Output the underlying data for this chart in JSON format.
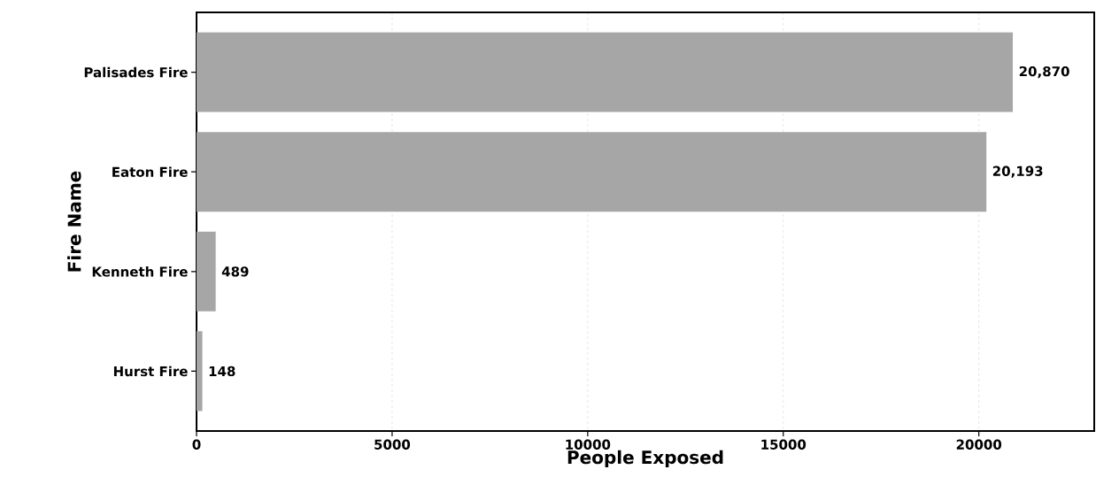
{
  "chart_data": {
    "type": "bar",
    "orientation": "horizontal",
    "xlabel": "People Exposed",
    "ylabel": "Fire Name",
    "categories": [
      "Palisades Fire",
      "Eaton Fire",
      "Kenneth Fire",
      "Hurst Fire"
    ],
    "values": [
      20870,
      20193,
      489,
      148
    ],
    "value_labels": [
      "20,870",
      "20,193",
      "489",
      "148"
    ],
    "color": "#a6a6a6",
    "xlim": [
      0,
      22950
    ],
    "xticks": [
      0,
      5000,
      10000,
      15000,
      20000
    ],
    "grid": "x"
  }
}
